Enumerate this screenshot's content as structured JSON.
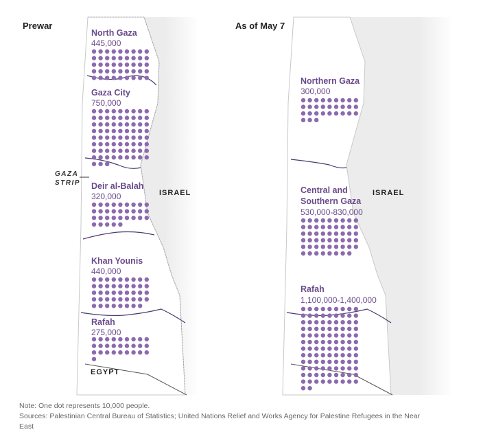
{
  "panels": {
    "prewar": {
      "title": "Prewar",
      "regions": [
        {
          "name": "North Gaza",
          "population": "445,000",
          "dots": 45
        },
        {
          "name": "Gaza City",
          "population": "750,000",
          "dots": 75
        },
        {
          "name": "Deir al-Balah",
          "population": "320,000",
          "dots": 32
        },
        {
          "name": "Khan Younis",
          "population": "440,000",
          "dots": 44
        },
        {
          "name": "Rafah",
          "population": "275,000",
          "dots": 28
        }
      ]
    },
    "current": {
      "title": "As of May 7",
      "regions": [
        {
          "name": "Northern Gaza",
          "population": "300,000",
          "dots": 30
        },
        {
          "name": "Central and Southern Gaza",
          "name_lines": [
            "Central and",
            "Southern Gaza"
          ],
          "population": "530,000-830,000",
          "dots": 53
        },
        {
          "name": "Rafah",
          "population": "1,100,000-1,400,000",
          "dots": 110
        }
      ]
    }
  },
  "labels": {
    "gaza_strip": [
      "GAZA",
      "STRIP"
    ],
    "israel": "ISRAEL",
    "egypt": "EGYPT"
  },
  "footer": {
    "note": "Note: One dot represents 10,000 people.",
    "sources_line1": "Sources: Palestinian Central Bureau of Statistics; United Nations Relief and Works Agency for Palestine Refugees in the Near",
    "sources_line2": "East"
  },
  "colors": {
    "dot": "#8b6aae",
    "label": "#6a4a8c",
    "strip": "#ffffff",
    "surroundings": "#ececec",
    "boundary": "#4a3a6e"
  }
}
